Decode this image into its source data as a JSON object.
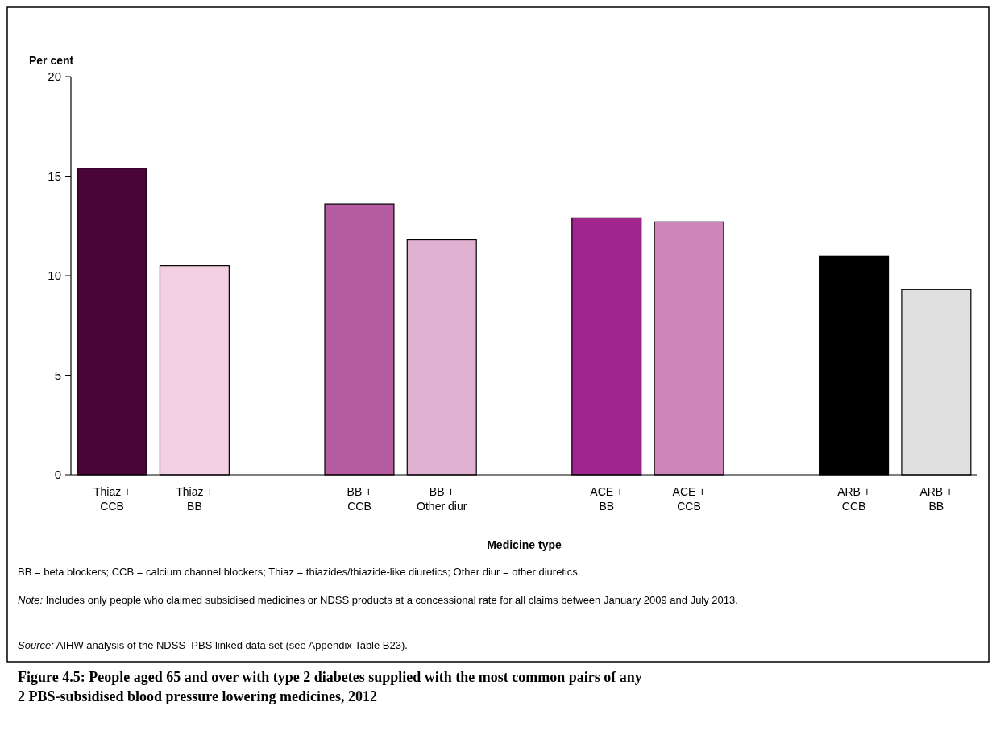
{
  "chart_data": {
    "type": "bar",
    "title": "Figure 4.5: People aged 65 and over with type 2 diabetes supplied with the most common pairs of any 2 PBS-subsidised blood pressure lowering medicines, 2012",
    "ylabel": "Per cent",
    "xlabel": "Medicine type",
    "categories": [
      "Thiaz + CCB",
      "Thiaz + BB",
      null,
      "BB + CCB",
      "BB + Other diur",
      null,
      "ACE + BB",
      "ACE + CCB",
      null,
      "ARB + CCB",
      "ARB + BB"
    ],
    "values": [
      15.4,
      10.5,
      null,
      13.6,
      11.8,
      null,
      12.9,
      12.7,
      null,
      11.0,
      9.3
    ],
    "colors": [
      "#490537",
      "#f2d0e2",
      null,
      "#b55ba1",
      "#e0b0d0",
      null,
      "#a0268e",
      "#cc85b8",
      null,
      "#000000",
      "#e0e0e0"
    ],
    "ylim": [
      0,
      20
    ],
    "yticks": [
      0,
      5,
      10,
      15,
      20
    ],
    "annotations": [
      "BB = beta blockers; CCB = calcium channel blockers; Thiaz = thiazides/thiazide-like diuretics; Other diur = other diuretics.",
      "Note: Includes only people who claimed subsidised medicines or NDSS products at a concessional rate for all claims between January 2009 and July 2013.",
      "Source: AIHW analysis of the NDSS–PBS linked data set (see Appendix Table B23)."
    ]
  }
}
